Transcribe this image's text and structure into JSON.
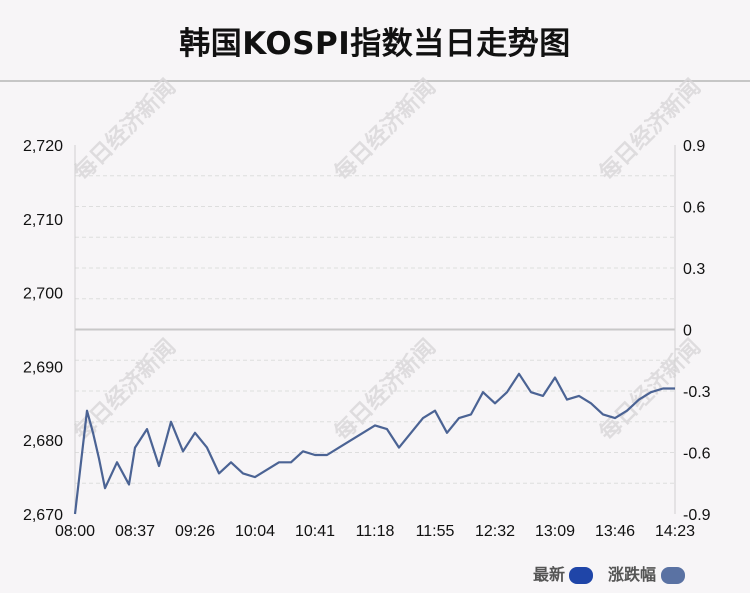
{
  "title": "韩国KOSPI指数当日走势图",
  "watermark": "每日经济新闻",
  "colors": {
    "line": "#4b6394",
    "latest_swatch": "#1f45a8",
    "change_swatch": "#5a72a3",
    "grid": "#dedede",
    "zero_line": "#c8c8c8"
  },
  "legend": [
    {
      "label": "最新",
      "color": "#1f45a8"
    },
    {
      "label": "涨跌幅",
      "color": "#5a72a3"
    }
  ],
  "chart_data": {
    "type": "line",
    "title": "韩国KOSPI指数当日走势图",
    "x_ticks": [
      "08:00",
      "08:37",
      "09:26",
      "10:04",
      "10:41",
      "11:18",
      "11:55",
      "12:32",
      "13:09",
      "13:46",
      "14:23"
    ],
    "y_left_ticks": [
      "2,670",
      "2,680",
      "2,690",
      "2,700",
      "2,710",
      "2,720"
    ],
    "y_left_range": [
      2670,
      2720
    ],
    "y_right_ticks": [
      "-0.9",
      "-0.6",
      "-0.3",
      "0",
      "0.3",
      "0.6",
      "0.9"
    ],
    "y_right_range": [
      -0.9,
      0.9
    ],
    "grid": true,
    "legend_position": "bottom-right",
    "series": [
      {
        "name": "最新",
        "x_index": [
          0,
          0.1,
          0.2,
          0.3,
          0.4,
          0.5,
          0.7,
          0.9,
          1.0,
          1.2,
          1.4,
          1.6,
          1.8,
          2.0,
          2.2,
          2.4,
          2.6,
          2.8,
          3.0,
          3.2,
          3.4,
          3.6,
          3.8,
          4.0,
          4.2,
          4.4,
          4.6,
          4.8,
          5.0,
          5.2,
          5.4,
          5.6,
          5.8,
          6.0,
          6.2,
          6.4,
          6.6,
          6.8,
          7.0,
          7.2,
          7.4,
          7.6,
          7.8,
          8.0,
          8.2,
          8.4,
          8.6,
          8.8,
          9.0,
          9.2,
          9.4,
          9.6,
          9.8,
          10.0
        ],
        "values": [
          2670.0,
          2677.0,
          2684.0,
          2681.0,
          2677.5,
          2673.5,
          2677.0,
          2674.0,
          2679.0,
          2681.5,
          2676.5,
          2682.5,
          2678.5,
          2681.0,
          2679.0,
          2675.5,
          2677.0,
          2675.5,
          2675.0,
          2676.0,
          2677.0,
          2677.0,
          2678.5,
          2678.0,
          2678.0,
          2679.0,
          2680.0,
          2681.0,
          2682.0,
          2681.5,
          2679.0,
          2681.0,
          2683.0,
          2684.0,
          2681.0,
          2683.0,
          2683.5,
          2686.5,
          2685.0,
          2686.5,
          2689.0,
          2686.5,
          2686.0,
          2688.5,
          2685.5,
          2686.0,
          2685.0,
          2683.5,
          2683.0,
          2684.0,
          2685.5,
          2686.5,
          2687.0,
          2687.0
        ]
      }
    ]
  }
}
